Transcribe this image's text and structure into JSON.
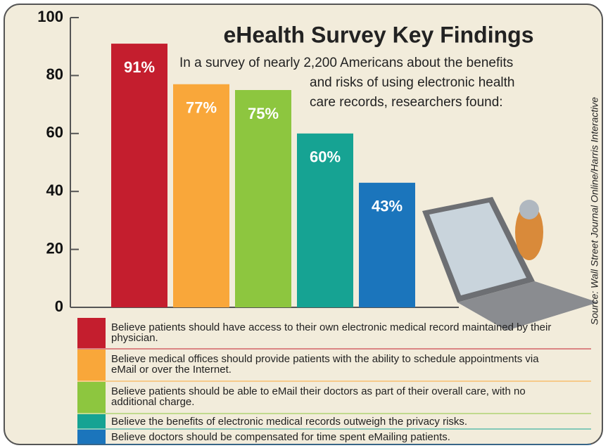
{
  "chart_data": {
    "type": "bar",
    "title": "eHealth Survey Key Findings",
    "subtitle": [
      "In a survey of nearly 2,200 Americans about the benefits",
      "and risks of using electronic health",
      "care records, researchers found:"
    ],
    "source": "Source: Wall Street Journal Online/Harris Interactive",
    "categories": [
      "Believe patients should have access to their own electronic medical record maintained by their physician.",
      "Believe medical offices should provide patients with the ability to schedule appointments via eMail or over the Internet.",
      "Believe patients should be able to eMail their doctors as part of their overall care, with no additional charge.",
      "Believe the benefits of electronic medical records outweigh the privacy risks.",
      "Believe doctors should be compensated for time spent eMailing patients."
    ],
    "values": [
      91,
      77,
      75,
      60,
      43
    ],
    "value_labels": [
      "91%",
      "77%",
      "75%",
      "60%",
      "43%"
    ],
    "colors": [
      "#c41e2e",
      "#f9a73a",
      "#8dc63f",
      "#16a393",
      "#1b75bc"
    ],
    "ylim": [
      0,
      100
    ],
    "yticks": [
      0,
      20,
      40,
      60,
      80,
      100
    ]
  }
}
